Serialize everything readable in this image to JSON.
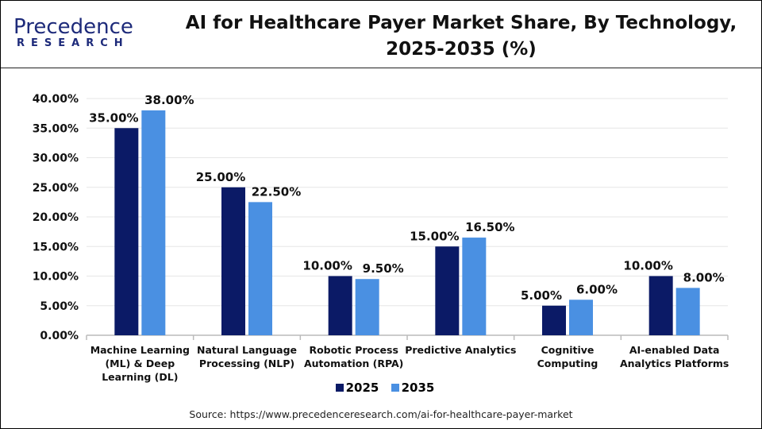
{
  "logo": {
    "line1": "Precedence",
    "line2": "RESEARCH"
  },
  "chart_data": {
    "type": "bar",
    "title": "AI for Healthcare Payer Market Share, By Technology, 2025-2035 (%)",
    "title_lines": [
      "AI for Healthcare Payer Market Share, By Technology,",
      "2025-2035 (%)"
    ],
    "categories": [
      [
        "Machine Learning",
        "(ML) & Deep",
        "Learning (DL)"
      ],
      [
        "Natural Language",
        "Processing (NLP)"
      ],
      [
        "Robotic Process",
        "Automation (RPA)"
      ],
      [
        "Predictive Analytics"
      ],
      [
        "Cognitive",
        "Computing"
      ],
      [
        "AI-enabled Data",
        "Analytics Platforms"
      ]
    ],
    "series": [
      {
        "name": "2025",
        "color": "#0b1a66",
        "values": [
          35,
          25,
          10,
          15,
          5,
          10
        ],
        "labels": [
          "35.00%",
          "25.00%",
          "10.00%",
          "15.00%",
          "5.00%",
          "10.00%"
        ]
      },
      {
        "name": "2035",
        "color": "#4a90e2",
        "values": [
          38,
          22.5,
          9.5,
          16.5,
          6,
          8
        ],
        "labels": [
          "38.00%",
          "22.50%",
          "9.50%",
          "16.50%",
          "6.00%",
          "8.00%"
        ]
      }
    ],
    "yticks": [
      "0.00%",
      "5.00%",
      "10.00%",
      "15.00%",
      "20.00%",
      "25.00%",
      "30.00%",
      "35.00%",
      "40.00%"
    ],
    "ylim": [
      0,
      40
    ],
    "grid": true,
    "legend": "bottom",
    "xlabel": "",
    "ylabel": ""
  },
  "source": "Source: https://www.precedenceresearch.com/ai-for-healthcare-payer-market"
}
